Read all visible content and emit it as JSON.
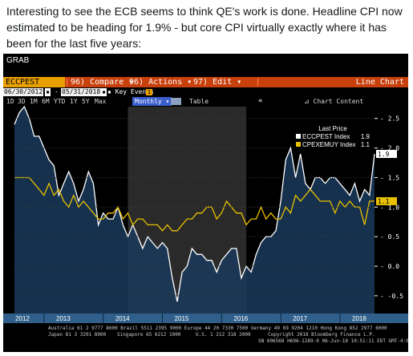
{
  "tweet": {
    "text": "Interesting to see the ECB seems to think QE's work is done. Headline CPI now estimated to be heading for 1.9% - but core CPI virtually exactly where it has been for the last five years:"
  },
  "terminal": {
    "window_title": "GRAB",
    "ticker": "ECCPEST Index",
    "toolbar": {
      "compare_label": "96) Compare",
      "actions_label": "96) Actions",
      "edit_label": "97) Edit",
      "chart_type_label": "Line Chart"
    },
    "date_range": {
      "start": "06/30/2012",
      "end": "05/31/2018",
      "key_events_label": "Key Events",
      "key_events_value": "1"
    },
    "periods": [
      "1D",
      "3D",
      "1M",
      "6M",
      "YTD",
      "1Y",
      "5Y",
      "Max"
    ],
    "frequency": "Monthly",
    "table_label": "Table",
    "collapse_label": "«",
    "chart_content_label": "Chart Content",
    "colors": {
      "headline_series": "#ffffff",
      "core_series": "#e8c000",
      "area_fill": "#1a3a5c",
      "orange_bar": "#c8400c"
    },
    "footer": {
      "line1": "Australia 61 2 9777 8600 Brazil 5511 2395 9000 Europe 44 20 7330 7500 Germany 49 69 9204 1210 Hong Kong 852 2977 6000",
      "line2_left": "Japan 81 3 3201 8900",
      "line2_mid": "Singapore 65 6212 1000",
      "line2_mid2": "U.S. 1 212 318 2000",
      "line2_right": "Copyright 2018 Bloomberg Finance L.P.",
      "line3": "SN 606568 H696-1289-0 06-Jun-18 10:51:11 EDT GMT-4:00"
    }
  },
  "chart_data": {
    "type": "line",
    "legend": {
      "title": "Last Price",
      "entries": [
        {
          "name": "ECCPEST Index",
          "value": "1.9"
        },
        {
          "name": "CPEXEMUY Index",
          "value": "1.1"
        }
      ]
    },
    "x_tick_labels": [
      "2012",
      "2013",
      "2014",
      "2015",
      "2016",
      "2017",
      "2018"
    ],
    "y_tick_labels": [
      "2.5",
      "2.0",
      "1.5",
      "1.0",
      "0.5",
      "0.0",
      "-0.5"
    ],
    "ylim": [
      -0.8,
      2.7
    ],
    "last_value_tags": [
      {
        "label": "1.9",
        "value": 1.9
      },
      {
        "label": "1.1",
        "value": 1.1
      }
    ],
    "series": [
      {
        "name": "ECCPEST Index",
        "values": [
          2.4,
          2.6,
          2.7,
          2.5,
          2.2,
          2.2,
          2.0,
          1.8,
          1.7,
          1.2,
          1.4,
          1.6,
          1.4,
          1.1,
          1.3,
          1.6,
          1.4,
          0.7,
          0.9,
          0.8,
          0.8,
          1.0,
          0.7,
          0.5,
          0.7,
          0.5,
          0.3,
          0.5,
          0.4,
          0.3,
          0.4,
          0.3,
          -0.2,
          -0.6,
          -0.1,
          0.0,
          0.3,
          0.2,
          0.2,
          0.1,
          0.1,
          -0.1,
          0.1,
          0.2,
          0.3,
          0.3,
          -0.2,
          0.0,
          -0.1,
          0.2,
          0.4,
          0.5,
          0.5,
          0.6,
          1.1,
          1.8,
          2.0,
          1.5,
          1.9,
          1.4,
          1.3,
          1.5,
          1.5,
          1.4,
          1.5,
          1.5,
          1.4,
          1.3,
          1.2,
          1.4,
          1.1,
          1.3,
          1.2,
          1.9
        ]
      },
      {
        "name": "CPEXEMUY Index",
        "values": [
          1.5,
          1.5,
          1.5,
          1.5,
          1.4,
          1.3,
          1.2,
          1.4,
          1.2,
          1.3,
          1.1,
          1.0,
          1.2,
          1.0,
          1.1,
          1.0,
          0.9,
          0.8,
          0.8,
          0.9,
          0.9,
          1.0,
          0.8,
          0.9,
          0.7,
          0.8,
          0.8,
          0.7,
          0.7,
          0.7,
          0.6,
          0.7,
          0.6,
          0.6,
          0.7,
          0.8,
          0.8,
          0.9,
          0.9,
          1.0,
          1.0,
          0.8,
          0.9,
          1.1,
          1.0,
          0.9,
          0.9,
          0.7,
          0.8,
          0.8,
          1.0,
          0.8,
          0.9,
          0.8,
          0.8,
          1.0,
          0.9,
          1.2,
          1.1,
          1.2,
          1.3,
          1.2,
          1.1,
          1.1,
          1.1,
          0.9,
          1.1,
          1.0,
          1.1,
          1.0,
          1.0,
          0.7,
          1.1,
          1.1
        ]
      }
    ]
  }
}
